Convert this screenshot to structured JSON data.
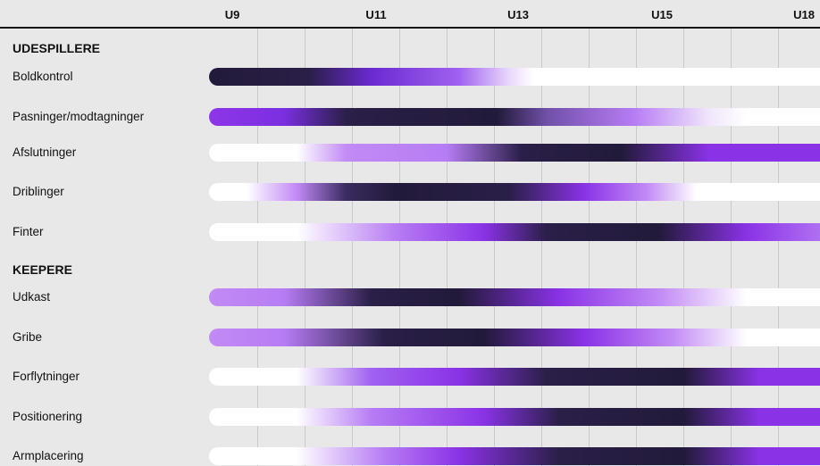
{
  "chart_data": {
    "type": "heatmap",
    "columns": [
      "U9",
      "U11",
      "U13",
      "U15",
      "U18"
    ],
    "sections": [
      {
        "title": "UDESPILLERE",
        "rows": [
          {
            "label": "Boldkontrol",
            "stops": [
              [
                0,
                "#221a3a"
              ],
              [
                16,
                "#2a1f48"
              ],
              [
                26,
                "#6a2ad0"
              ],
              [
                40,
                "#a061f0"
              ],
              [
                48,
                "#ead8fb"
              ],
              [
                52,
                "#ffffff"
              ],
              [
                100,
                "#ffffff"
              ]
            ]
          },
          {
            "label": "Pasninger/modtagninger",
            "stops": [
              [
                0,
                "#8e35e8"
              ],
              [
                12,
                "#7a2fe0"
              ],
              [
                22,
                "#2a1f48"
              ],
              [
                46,
                "#221a3a"
              ],
              [
                54,
                "#7050a8"
              ],
              [
                68,
                "#b77cf4"
              ],
              [
                80,
                "#f0e6fb"
              ],
              [
                86,
                "#ffffff"
              ],
              [
                100,
                "#ffffff"
              ]
            ]
          },
          {
            "label": "Afslutninger",
            "stops": [
              [
                0,
                "#ffffff"
              ],
              [
                14,
                "#ffffff"
              ],
              [
                22,
                "#c28af5"
              ],
              [
                38,
                "#b77cf4"
              ],
              [
                50,
                "#2a1f48"
              ],
              [
                66,
                "#221a3a"
              ],
              [
                80,
                "#8a32e6"
              ],
              [
                100,
                "#8a32e6"
              ]
            ]
          },
          {
            "label": "Driblinger",
            "stops": [
              [
                0,
                "#ffffff"
              ],
              [
                6,
                "#ffffff"
              ],
              [
                14,
                "#c28af5"
              ],
              [
                22,
                "#3a2a60"
              ],
              [
                30,
                "#221a3a"
              ],
              [
                48,
                "#2a1f48"
              ],
              [
                60,
                "#8a32e6"
              ],
              [
                70,
                "#c28af5"
              ],
              [
                78,
                "#ffffff"
              ],
              [
                100,
                "#ffffff"
              ]
            ]
          },
          {
            "label": "Finter",
            "stops": [
              [
                0,
                "#ffffff"
              ],
              [
                14,
                "#ffffff"
              ],
              [
                30,
                "#b77cf4"
              ],
              [
                44,
                "#8a32e6"
              ],
              [
                54,
                "#2a1f48"
              ],
              [
                72,
                "#221a3a"
              ],
              [
                86,
                "#8a32e6"
              ],
              [
                100,
                "#b77cf4"
              ]
            ]
          }
        ]
      },
      {
        "title": "KEEPERE",
        "rows": [
          {
            "label": "Udkast",
            "stops": [
              [
                0,
                "#c28af5"
              ],
              [
                12,
                "#b77cf4"
              ],
              [
                26,
                "#2a1f48"
              ],
              [
                40,
                "#221a3a"
              ],
              [
                56,
                "#8a32e6"
              ],
              [
                72,
                "#c28af5"
              ],
              [
                86,
                "#ffffff"
              ],
              [
                100,
                "#ffffff"
              ]
            ]
          },
          {
            "label": "Gribe",
            "stops": [
              [
                0,
                "#c28af5"
              ],
              [
                12,
                "#b77cf4"
              ],
              [
                28,
                "#2a1f48"
              ],
              [
                44,
                "#221a3a"
              ],
              [
                60,
                "#8a32e6"
              ],
              [
                74,
                "#c28af5"
              ],
              [
                86,
                "#ffffff"
              ],
              [
                100,
                "#ffffff"
              ]
            ]
          },
          {
            "label": "Forflytninger",
            "stops": [
              [
                0,
                "#ffffff"
              ],
              [
                14,
                "#ffffff"
              ],
              [
                26,
                "#a061f0"
              ],
              [
                40,
                "#8a32e6"
              ],
              [
                54,
                "#2a1f48"
              ],
              [
                76,
                "#221a3a"
              ],
              [
                88,
                "#8a32e6"
              ],
              [
                100,
                "#8a32e6"
              ]
            ]
          },
          {
            "label": "Positionering",
            "stops": [
              [
                0,
                "#ffffff"
              ],
              [
                14,
                "#ffffff"
              ],
              [
                26,
                "#b77cf4"
              ],
              [
                44,
                "#8a32e6"
              ],
              [
                56,
                "#2a1f48"
              ],
              [
                76,
                "#221a3a"
              ],
              [
                88,
                "#8a32e6"
              ],
              [
                100,
                "#8a32e6"
              ]
            ]
          },
          {
            "label": "Armplacering",
            "stops": [
              [
                0,
                "#ffffff"
              ],
              [
                14,
                "#ffffff"
              ],
              [
                28,
                "#b77cf4"
              ],
              [
                40,
                "#8a32e6"
              ],
              [
                56,
                "#2a1f48"
              ],
              [
                76,
                "#221a3a"
              ],
              [
                88,
                "#8a32e6"
              ],
              [
                100,
                "#8a32e6"
              ]
            ]
          }
        ]
      }
    ]
  }
}
